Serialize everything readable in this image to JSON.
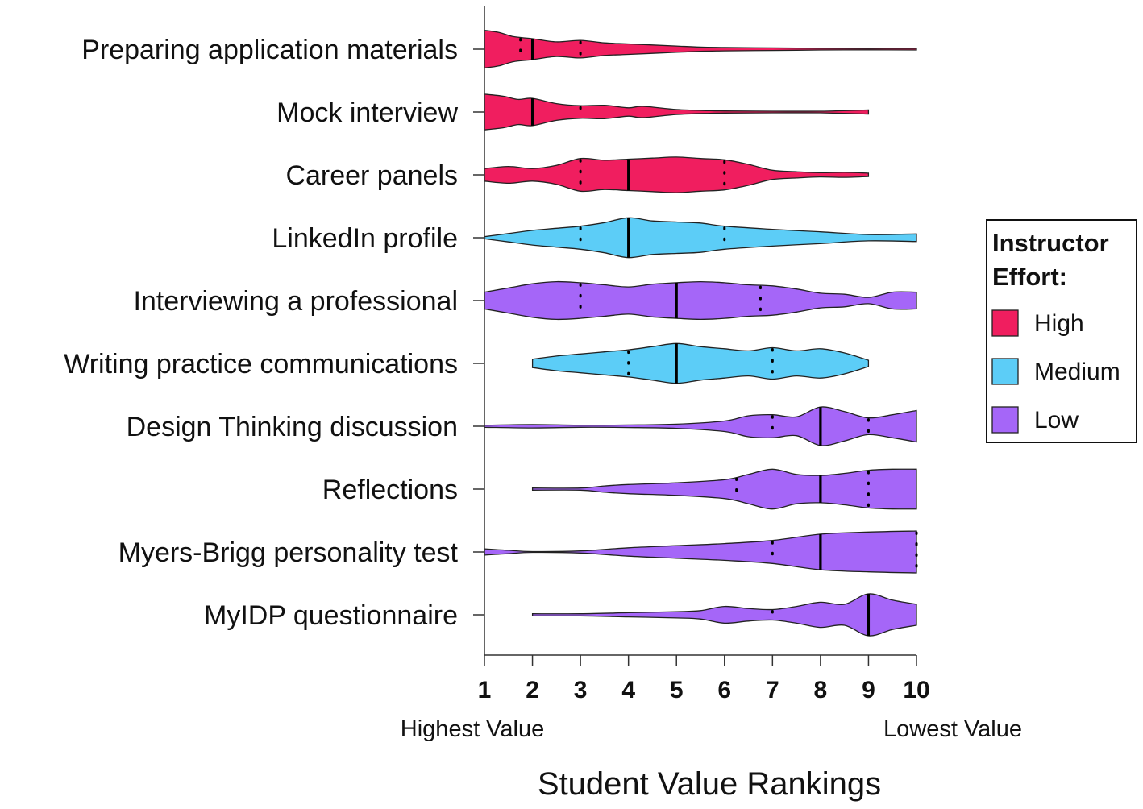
{
  "chart_data": {
    "type": "violin",
    "title": "",
    "xlabel": "Student Value Rankings",
    "x_end_labels": {
      "left": "Highest Value",
      "right": "Lowest Value"
    },
    "xlim": [
      1,
      10
    ],
    "x_ticks": [
      1,
      2,
      3,
      4,
      5,
      6,
      7,
      8,
      9,
      10
    ],
    "legend": {
      "title_lines": [
        "Instructor",
        "Effort:"
      ],
      "position": "right",
      "entries": [
        {
          "label": "High",
          "color": "#f01e5f"
        },
        {
          "label": "Medium",
          "color": "#5ccdf7"
        },
        {
          "label": "Low",
          "color": "#a566f8"
        }
      ]
    },
    "categories": [
      {
        "label": "Preparing application materials",
        "effort": "High",
        "median": 2,
        "quartiles": [
          1.75,
          3
        ],
        "density": [
          [
            1,
            0.9
          ],
          [
            1.3,
            0.8
          ],
          [
            1.6,
            0.6
          ],
          [
            2,
            0.5
          ],
          [
            2.5,
            0.35
          ],
          [
            3,
            0.42
          ],
          [
            3.5,
            0.3
          ],
          [
            4,
            0.25
          ],
          [
            5,
            0.15
          ],
          [
            5.5,
            0.1
          ],
          [
            6,
            0.08
          ],
          [
            7,
            0.06
          ],
          [
            8,
            0.04
          ],
          [
            9,
            0.03
          ],
          [
            10,
            0.04
          ]
        ]
      },
      {
        "label": "Mock interview",
        "effort": "High",
        "median": 2,
        "quartiles": [
          2,
          3
        ],
        "density": [
          [
            1,
            0.85
          ],
          [
            1.4,
            0.75
          ],
          [
            1.7,
            0.6
          ],
          [
            2,
            0.65
          ],
          [
            2.5,
            0.4
          ],
          [
            3,
            0.3
          ],
          [
            3.5,
            0.32
          ],
          [
            4,
            0.2
          ],
          [
            4.3,
            0.27
          ],
          [
            5,
            0.12
          ],
          [
            5.7,
            0.06
          ],
          [
            6,
            0.05
          ],
          [
            7,
            0.04
          ],
          [
            8,
            0.04
          ],
          [
            9,
            0.1
          ]
        ]
      },
      {
        "label": "Career panels",
        "effort": "High",
        "median": 4,
        "quartiles": [
          3,
          6
        ],
        "density": [
          [
            1,
            0.3
          ],
          [
            1.5,
            0.4
          ],
          [
            2,
            0.3
          ],
          [
            2.5,
            0.45
          ],
          [
            3,
            0.78
          ],
          [
            3.5,
            0.7
          ],
          [
            4,
            0.75
          ],
          [
            4.5,
            0.8
          ],
          [
            5,
            0.85
          ],
          [
            5.5,
            0.78
          ],
          [
            6,
            0.72
          ],
          [
            6.5,
            0.5
          ],
          [
            7,
            0.22
          ],
          [
            7.5,
            0.15
          ],
          [
            8,
            0.1
          ],
          [
            8.5,
            0.12
          ],
          [
            9,
            0.08
          ]
        ]
      },
      {
        "label": "LinkedIn profile",
        "effort": "Medium",
        "median": 4,
        "quartiles": [
          3,
          6
        ],
        "density": [
          [
            1,
            0.05
          ],
          [
            1.5,
            0.2
          ],
          [
            2,
            0.35
          ],
          [
            2.5,
            0.45
          ],
          [
            3,
            0.55
          ],
          [
            3.5,
            0.72
          ],
          [
            4,
            0.95
          ],
          [
            4.5,
            0.8
          ],
          [
            5,
            0.75
          ],
          [
            5.5,
            0.7
          ],
          [
            6,
            0.55
          ],
          [
            7,
            0.4
          ],
          [
            8,
            0.28
          ],
          [
            9,
            0.15
          ],
          [
            10,
            0.18
          ]
        ]
      },
      {
        "label": "Interviewing a professional",
        "effort": "Low",
        "median": 5,
        "quartiles": [
          3,
          6.75
        ],
        "density": [
          [
            1,
            0.4
          ],
          [
            1.5,
            0.6
          ],
          [
            2,
            0.8
          ],
          [
            2.5,
            0.9
          ],
          [
            3,
            0.85
          ],
          [
            3.5,
            0.75
          ],
          [
            4,
            0.65
          ],
          [
            4.5,
            0.78
          ],
          [
            5,
            0.85
          ],
          [
            5.5,
            0.9
          ],
          [
            6,
            0.85
          ],
          [
            6.5,
            0.75
          ],
          [
            7,
            0.7
          ],
          [
            7.5,
            0.55
          ],
          [
            8,
            0.35
          ],
          [
            8.5,
            0.3
          ],
          [
            9,
            0.15
          ],
          [
            9.5,
            0.4
          ],
          [
            10,
            0.4
          ]
        ]
      },
      {
        "label": "Writing practice communications",
        "effort": "Medium",
        "median": 5,
        "quartiles": [
          4,
          7
        ],
        "density": [
          [
            2,
            0.2
          ],
          [
            2.5,
            0.35
          ],
          [
            3,
            0.45
          ],
          [
            3.5,
            0.55
          ],
          [
            4,
            0.65
          ],
          [
            4.5,
            0.8
          ],
          [
            5,
            0.95
          ],
          [
            5.5,
            0.8
          ],
          [
            6,
            0.7
          ],
          [
            6.5,
            0.6
          ],
          [
            7,
            0.75
          ],
          [
            7.5,
            0.6
          ],
          [
            8,
            0.7
          ],
          [
            8.5,
            0.5
          ],
          [
            9,
            0.15
          ]
        ]
      },
      {
        "label": "Design Thinking discussion",
        "effort": "Low",
        "median": 8,
        "quartiles": [
          7,
          9
        ],
        "density": [
          [
            1,
            0.05
          ],
          [
            2,
            0.08
          ],
          [
            3,
            0.05
          ],
          [
            4,
            0.06
          ],
          [
            5,
            0.1
          ],
          [
            6,
            0.25
          ],
          [
            6.5,
            0.5
          ],
          [
            7,
            0.55
          ],
          [
            7.5,
            0.45
          ],
          [
            8,
            0.92
          ],
          [
            8.5,
            0.7
          ],
          [
            9,
            0.4
          ],
          [
            9.5,
            0.55
          ],
          [
            10,
            0.75
          ]
        ]
      },
      {
        "label": "Reflections",
        "effort": "Low",
        "median": 8,
        "quartiles": [
          6.25,
          9
        ],
        "density": [
          [
            2,
            0.05
          ],
          [
            3,
            0.05
          ],
          [
            3.5,
            0.15
          ],
          [
            4,
            0.22
          ],
          [
            5,
            0.3
          ],
          [
            6,
            0.45
          ],
          [
            6.5,
            0.7
          ],
          [
            7,
            0.95
          ],
          [
            7.5,
            0.7
          ],
          [
            8,
            0.65
          ],
          [
            8.5,
            0.75
          ],
          [
            9,
            0.9
          ],
          [
            9.5,
            0.95
          ],
          [
            10,
            0.95
          ]
        ]
      },
      {
        "label": "Myers-Brigg personality test",
        "effort": "Low",
        "median": 8,
        "quartiles": [
          7,
          10
        ],
        "density": [
          [
            1,
            0.15
          ],
          [
            1.5,
            0.08
          ],
          [
            2,
            0.02
          ],
          [
            3,
            0.05
          ],
          [
            4,
            0.2
          ],
          [
            5,
            0.3
          ],
          [
            6,
            0.4
          ],
          [
            7,
            0.55
          ],
          [
            8,
            0.85
          ],
          [
            9,
            0.95
          ],
          [
            10,
            1.0
          ]
        ]
      },
      {
        "label": "MyIDP questionnaire",
        "effort": "Low",
        "median": 9,
        "quartiles": [
          7,
          9
        ],
        "density": [
          [
            2,
            0.05
          ],
          [
            3,
            0.05
          ],
          [
            4,
            0.1
          ],
          [
            5,
            0.15
          ],
          [
            5.5,
            0.2
          ],
          [
            6,
            0.4
          ],
          [
            6.5,
            0.3
          ],
          [
            7,
            0.25
          ],
          [
            7.5,
            0.4
          ],
          [
            8,
            0.6
          ],
          [
            8.5,
            0.5
          ],
          [
            9,
            1.0
          ],
          [
            9.5,
            0.7
          ],
          [
            10,
            0.5
          ]
        ]
      }
    ]
  }
}
